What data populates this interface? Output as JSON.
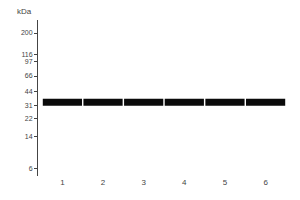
{
  "chart_data": {
    "type": "scatter",
    "marker": "band",
    "color": "#0a0a0a",
    "ylabel": "kDa",
    "categories": [
      "1",
      "2",
      "3",
      "4",
      "5",
      "6"
    ],
    "values": [
      33.5,
      33.5,
      33.5,
      33.5,
      33.5,
      33.5
    ],
    "log": "y",
    "ylim": [
      5,
      280
    ],
    "yticks": [
      200,
      116,
      97,
      66,
      44,
      31,
      22,
      14,
      6
    ],
    "grid": false
  }
}
